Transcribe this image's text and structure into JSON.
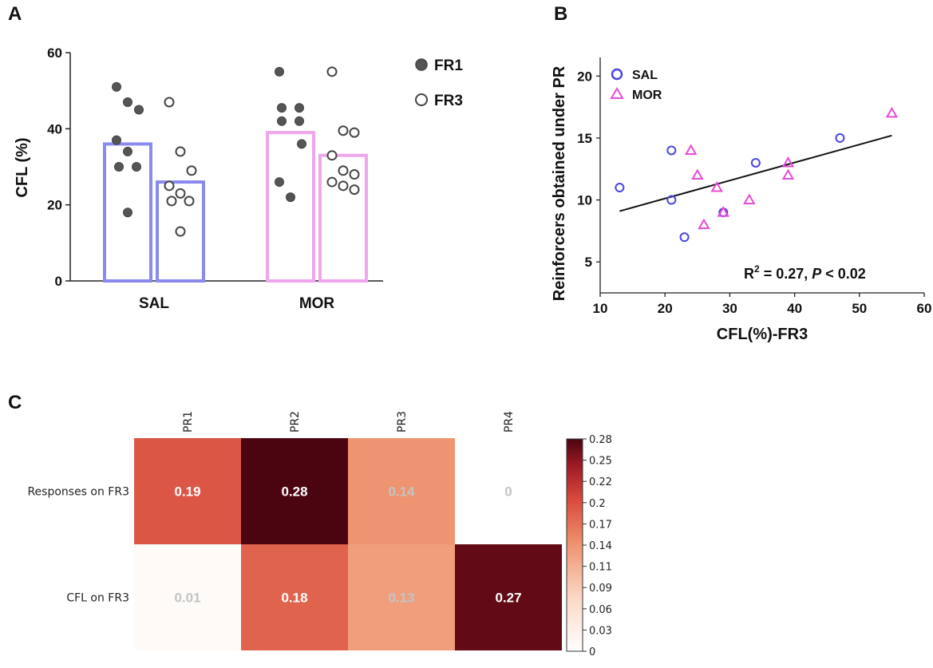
{
  "chart_data": [
    {
      "panel": "A",
      "type": "bar",
      "ylabel": "CFL (%)",
      "ylim": [
        0,
        60
      ],
      "yticks": [
        "0",
        "20",
        "40",
        "60"
      ],
      "categories": [
        "SAL",
        "MOR"
      ],
      "series": [
        {
          "name": "FR1",
          "marker": "filled-circle",
          "means": [
            36,
            39
          ],
          "points": [
            [
              51,
              47,
              45,
              37,
              34,
              30,
              30,
              18
            ],
            [
              55,
              45.5,
              45.5,
              42,
              42,
              36,
              26,
              22
            ]
          ]
        },
        {
          "name": "FR3",
          "marker": "open-circle",
          "means": [
            26,
            33
          ],
          "points": [
            [
              47,
              34,
              29,
              25,
              23,
              21,
              21,
              13
            ],
            [
              55,
              39.5,
              39,
              33,
              29,
              28,
              26,
              25,
              24
            ]
          ]
        }
      ],
      "colors": {
        "SAL": "#8a8af0",
        "MOR": "#f0a6ec",
        "point_fill": "#555555",
        "point_edge": "#444444"
      }
    },
    {
      "panel": "B",
      "type": "scatter",
      "xlabel": "CFL(%)-FR3",
      "ylabel": "Reinforcers obtained under PR",
      "xlim": [
        10,
        60
      ],
      "ylim": [
        2.5,
        21.5
      ],
      "xticks": [
        "10",
        "20",
        "30",
        "40",
        "50",
        "60"
      ],
      "yticks": [
        "5",
        "10",
        "15",
        "20"
      ],
      "series": [
        {
          "name": "SAL",
          "marker": "circle",
          "color": "#4a46e0",
          "x": [
            13,
            21,
            21,
            23,
            29,
            34,
            47
          ],
          "y": [
            11,
            14,
            10,
            7,
            9,
            13,
            15
          ]
        },
        {
          "name": "MOR",
          "marker": "triangle",
          "color": "#e84bd6",
          "x": [
            24,
            25,
            26,
            28,
            29,
            33,
            39,
            39,
            55
          ],
          "y": [
            14,
            12,
            8,
            11,
            9,
            10,
            13,
            12,
            17
          ]
        }
      ],
      "fit_line": {
        "x": [
          13,
          55
        ],
        "y": [
          9.1,
          15.2
        ]
      },
      "annotation": {
        "r2_prefix": "R",
        "r2_exp": "2",
        "r2_rest": " = 0.27, ",
        "p_label": "P",
        "p_rest": " < 0.02"
      }
    },
    {
      "panel": "C",
      "type": "heatmap",
      "columns": [
        "PR1",
        "PR2",
        "PR3",
        "PR4"
      ],
      "rows": [
        "Responses on FR3",
        "CFL on FR3"
      ],
      "values": [
        [
          0.19,
          0.28,
          0.14,
          0
        ],
        [
          0.01,
          0.18,
          0.13,
          0.27
        ]
      ],
      "value_labels": [
        [
          "0.19",
          "0.28",
          "0.14",
          "0"
        ],
        [
          "0.01",
          "0.18",
          "0.13",
          "0.27"
        ]
      ],
      "colorbar_ticks": [
        "0.28",
        "0.25",
        "0.22",
        "0.2",
        "0.17",
        "0.14",
        "0.11",
        "0.09",
        "0.06",
        "0.03",
        "0"
      ],
      "vmin": 0,
      "vmax": 0.28
    }
  ],
  "panel_letters": [
    "A",
    "B",
    "C"
  ],
  "legend_a": [
    "FR1",
    "FR3"
  ],
  "legend_b": [
    "SAL",
    "MOR"
  ]
}
